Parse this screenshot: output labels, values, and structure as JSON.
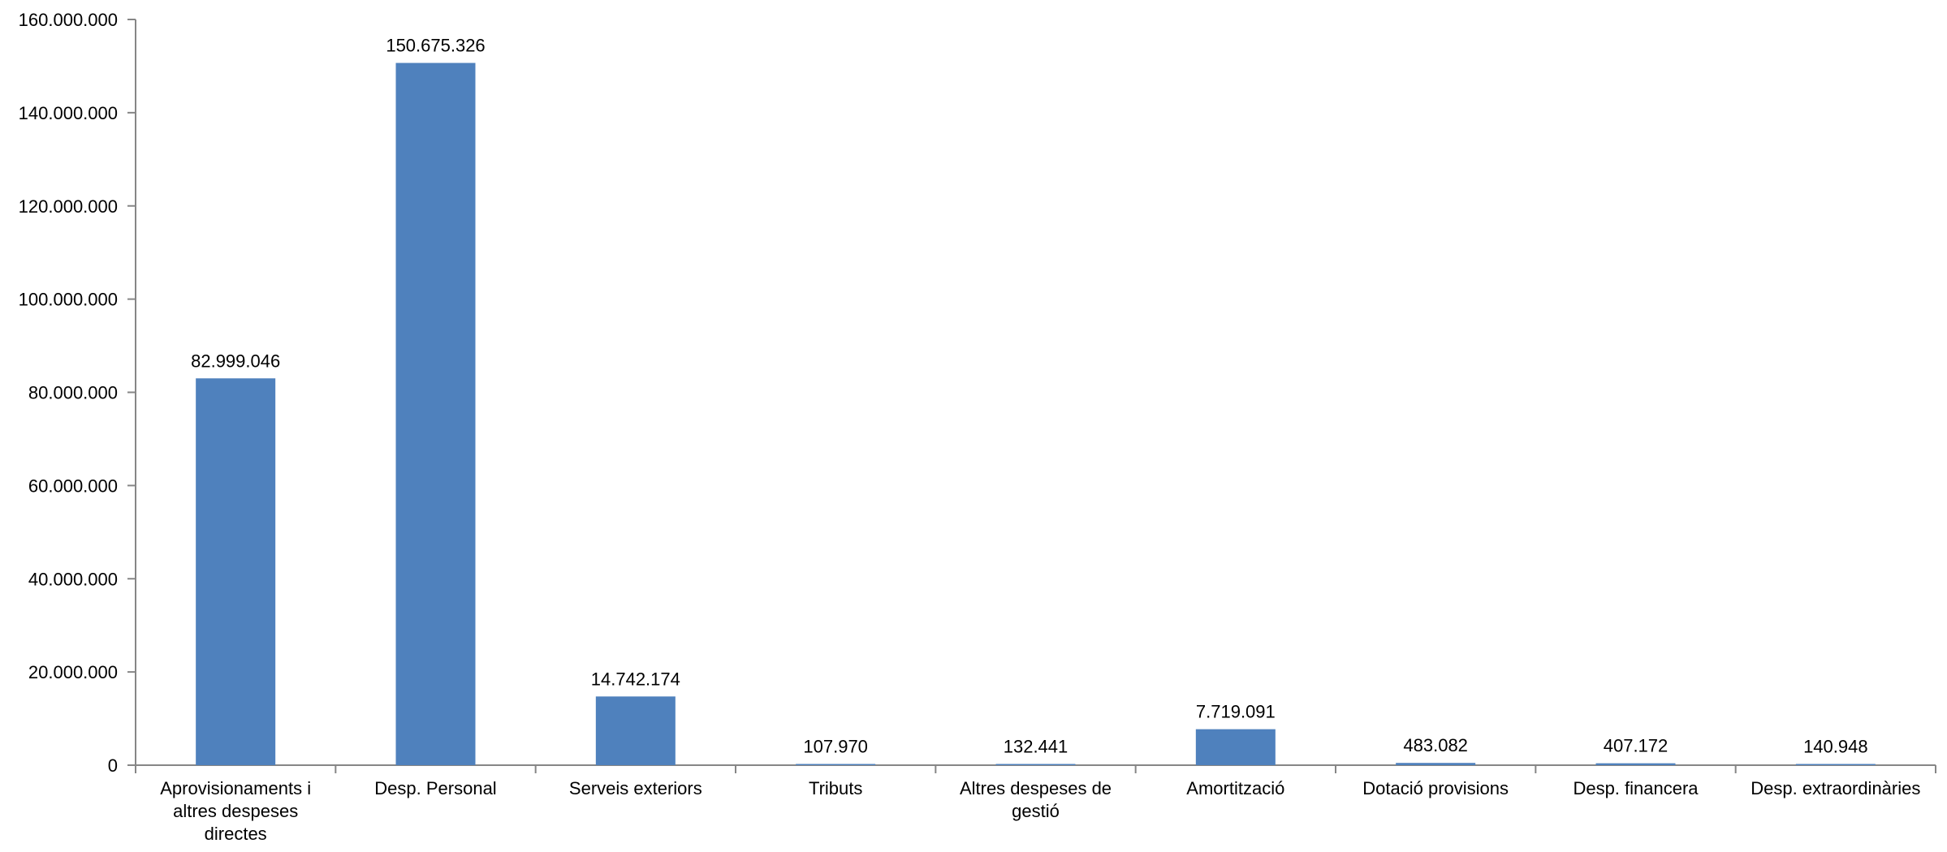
{
  "chart_data": {
    "type": "bar",
    "categories": [
      "Aprovisionaments i altres despeses directes",
      "Desp. Personal",
      "Serveis exteriors",
      "Tributs",
      "Altres despeses de gestió",
      "Amortització",
      "Dotació provisions",
      "Desp. financera",
      "Desp. extraordinàries"
    ],
    "category_lines": [
      [
        "Aprovisionaments i",
        "altres despeses",
        "directes"
      ],
      [
        "Desp. Personal"
      ],
      [
        "Serveis exteriors"
      ],
      [
        "Tributs"
      ],
      [
        "Altres despeses de",
        "gestió"
      ],
      [
        "Amortització"
      ],
      [
        "Dotació provisions"
      ],
      [
        "Desp. financera"
      ],
      [
        "Desp. extraordinàries"
      ]
    ],
    "values": [
      82999046,
      150675326,
      14742174,
      107970,
      132441,
      7719091,
      483082,
      407172,
      140948
    ],
    "data_labels": [
      "82.999.046",
      "150.675.326",
      "14.742.174",
      "107.970",
      "132.441",
      "7.719.091",
      "483.082",
      "407.172",
      "140.948"
    ],
    "ylim": [
      0,
      160000000
    ],
    "y_ticks": [
      0,
      20000000,
      40000000,
      60000000,
      80000000,
      100000000,
      120000000,
      140000000,
      160000000
    ],
    "y_tick_labels": [
      "0",
      "20.000.000",
      "40.000.000",
      "60.000.000",
      "80.000.000",
      "100.000.000",
      "120.000.000",
      "140.000.000",
      "160.000.000"
    ],
    "title": "",
    "xlabel": "",
    "ylabel": "",
    "grid": false,
    "bar_color": "#4f81bd",
    "axis_color": "#868686"
  }
}
